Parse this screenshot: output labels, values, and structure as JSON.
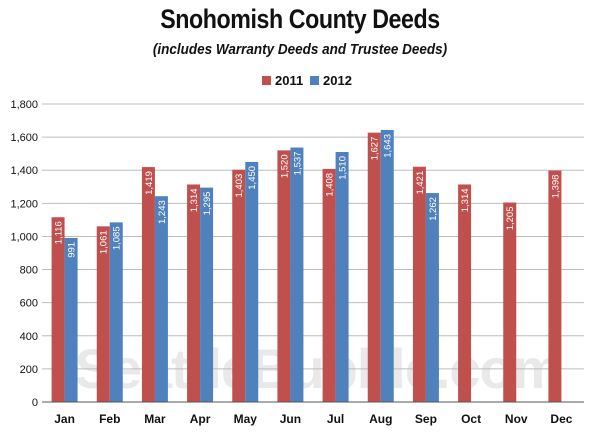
{
  "chart_data": {
    "type": "bar",
    "title": "Snohomish County Deeds",
    "subtitle": "(includes Warranty Deeds and Trustee Deeds)",
    "watermark": "SeattleBubble.com",
    "categories": [
      "Jan",
      "Feb",
      "Mar",
      "Apr",
      "May",
      "Jun",
      "Jul",
      "Aug",
      "Sep",
      "Oct",
      "Nov",
      "Dec"
    ],
    "series": [
      {
        "name": "2011",
        "color": "#c0504d",
        "values": [
          1116,
          1061,
          1419,
          1314,
          1403,
          1520,
          1408,
          1627,
          1421,
          1314,
          1205,
          1398
        ]
      },
      {
        "name": "2012",
        "color": "#4f81bd",
        "values": [
          991,
          1085,
          1243,
          1295,
          1450,
          1537,
          1510,
          1643,
          1262,
          null,
          null,
          null
        ]
      }
    ],
    "data_labels": [
      [
        "1,116",
        "1,061",
        "1,419",
        "1,314",
        "1,403",
        "1,520",
        "1,408",
        "1,627",
        "1,421",
        "1,314",
        "1,205",
        "1,398"
      ],
      [
        "991",
        "1,085",
        "1,243",
        "1,295",
        "1,450",
        "1,537",
        "1,510",
        "1,643",
        "1,262",
        "",
        "",
        ""
      ]
    ],
    "yticks": [
      0,
      200,
      400,
      600,
      800,
      1000,
      1200,
      1400,
      1600,
      1800
    ],
    "ytick_labels": [
      "0",
      "200",
      "400",
      "600",
      "800",
      "1,000",
      "1,200",
      "1,400",
      "1,600",
      "1,800"
    ],
    "ylim": [
      0,
      1800
    ],
    "grid": true,
    "legend": "top-center"
  }
}
